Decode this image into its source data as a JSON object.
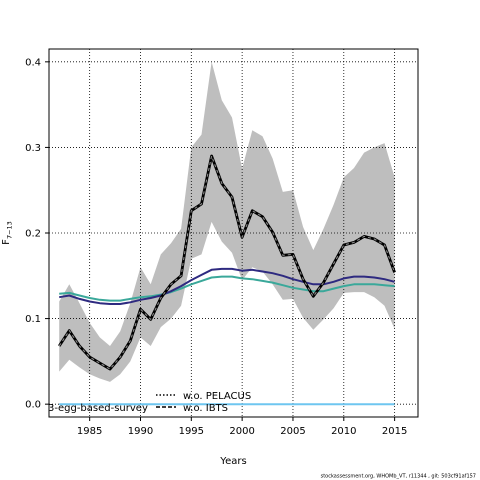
{
  "chart_data": {
    "type": "line",
    "xlabel": "Years",
    "ylabel_main": "F",
    "ylabel_sub": "7−13",
    "xlim": [
      1981,
      2017.3
    ],
    "ylim": [
      -0.015,
      0.415
    ],
    "xticks": [
      1985,
      1990,
      1995,
      2000,
      2005,
      2010,
      2015
    ],
    "xtick_labels": [
      "1985",
      "1990",
      "1995",
      "2000",
      "2005",
      "2010",
      "2015"
    ],
    "yticks": [
      0.0,
      0.1,
      0.2,
      0.3,
      0.4
    ],
    "ytick_labels": [
      "0.0",
      "0.1",
      "0.2",
      "0.3",
      "0.4"
    ],
    "grid": true,
    "x": [
      1982,
      1983,
      1984,
      1985,
      1986,
      1987,
      1988,
      1989,
      1990,
      1991,
      1992,
      1993,
      1994,
      1995,
      1996,
      1997,
      1998,
      1999,
      2000,
      2001,
      2002,
      2003,
      2004,
      2005,
      2006,
      2007,
      2008,
      2009,
      2010,
      2011,
      2012,
      2013,
      2014,
      2015
    ],
    "band": {
      "color": "#bebebe",
      "upper": [
        0.12,
        0.14,
        0.118,
        0.095,
        0.078,
        0.068,
        0.085,
        0.118,
        0.16,
        0.14,
        0.175,
        0.188,
        0.205,
        0.3,
        0.315,
        0.4,
        0.355,
        0.335,
        0.275,
        0.32,
        0.313,
        0.287,
        0.248,
        0.25,
        0.207,
        0.18,
        0.205,
        0.233,
        0.265,
        0.276,
        0.294,
        0.3,
        0.305,
        0.265
      ],
      "lower": [
        0.038,
        0.052,
        0.043,
        0.035,
        0.03,
        0.026,
        0.035,
        0.05,
        0.078,
        0.068,
        0.09,
        0.1,
        0.115,
        0.17,
        0.175,
        0.213,
        0.19,
        0.177,
        0.145,
        0.16,
        0.155,
        0.14,
        0.122,
        0.123,
        0.101,
        0.087,
        0.099,
        0.112,
        0.13,
        0.131,
        0.131,
        0.125,
        0.115,
        0.088
      ]
    },
    "series": [
      {
        "color": "#000000",
        "style": "dashed-black",
        "values": [
          0.068,
          0.086,
          0.068,
          0.055,
          0.048,
          0.041,
          0.055,
          0.074,
          0.111,
          0.099,
          0.124,
          0.14,
          0.15,
          0.226,
          0.234,
          0.29,
          0.258,
          0.242,
          0.195,
          0.226,
          0.219,
          0.201,
          0.174,
          0.175,
          0.146,
          0.126,
          0.142,
          0.164,
          0.186,
          0.189,
          0.196,
          0.193,
          0.186,
          0.154
        ]
      },
      {
        "color": "#2e2a80",
        "style": "solid",
        "values": [
          0.125,
          0.127,
          0.123,
          0.12,
          0.118,
          0.117,
          0.117,
          0.119,
          0.122,
          0.124,
          0.127,
          0.132,
          0.138,
          0.145,
          0.151,
          0.157,
          0.158,
          0.158,
          0.156,
          0.157,
          0.155,
          0.153,
          0.15,
          0.146,
          0.143,
          0.14,
          0.14,
          0.143,
          0.147,
          0.149,
          0.149,
          0.148,
          0.146,
          0.143
        ]
      },
      {
        "color": "#3aa89a",
        "style": "solid",
        "values": [
          0.129,
          0.13,
          0.127,
          0.124,
          0.122,
          0.121,
          0.121,
          0.123,
          0.125,
          0.126,
          0.128,
          0.131,
          0.135,
          0.14,
          0.144,
          0.148,
          0.149,
          0.149,
          0.147,
          0.146,
          0.144,
          0.142,
          0.139,
          0.136,
          0.134,
          0.132,
          0.132,
          0.135,
          0.138,
          0.14,
          0.14,
          0.14,
          0.139,
          0.138
        ]
      },
      {
        "color": "#6ec6f0",
        "style": "solid",
        "values": [
          0,
          0,
          0,
          0,
          0,
          0,
          0,
          0,
          0,
          0,
          0,
          0,
          0,
          0,
          0,
          0,
          0,
          0,
          0,
          0,
          0,
          0,
          0,
          0,
          0,
          0,
          0,
          0,
          0,
          0,
          0,
          0,
          0,
          0
        ]
      }
    ],
    "legend": [
      {
        "label": "3-egg-based-survey",
        "marker": "none"
      },
      {
        "label": "w.o. PELACUS",
        "marker": "dotted"
      },
      {
        "label": "w.o. IBTS",
        "marker": "dashed"
      }
    ],
    "footer": "stockassessment.org, WHOMb_VT, r11344 , git: 503cf91af157"
  }
}
